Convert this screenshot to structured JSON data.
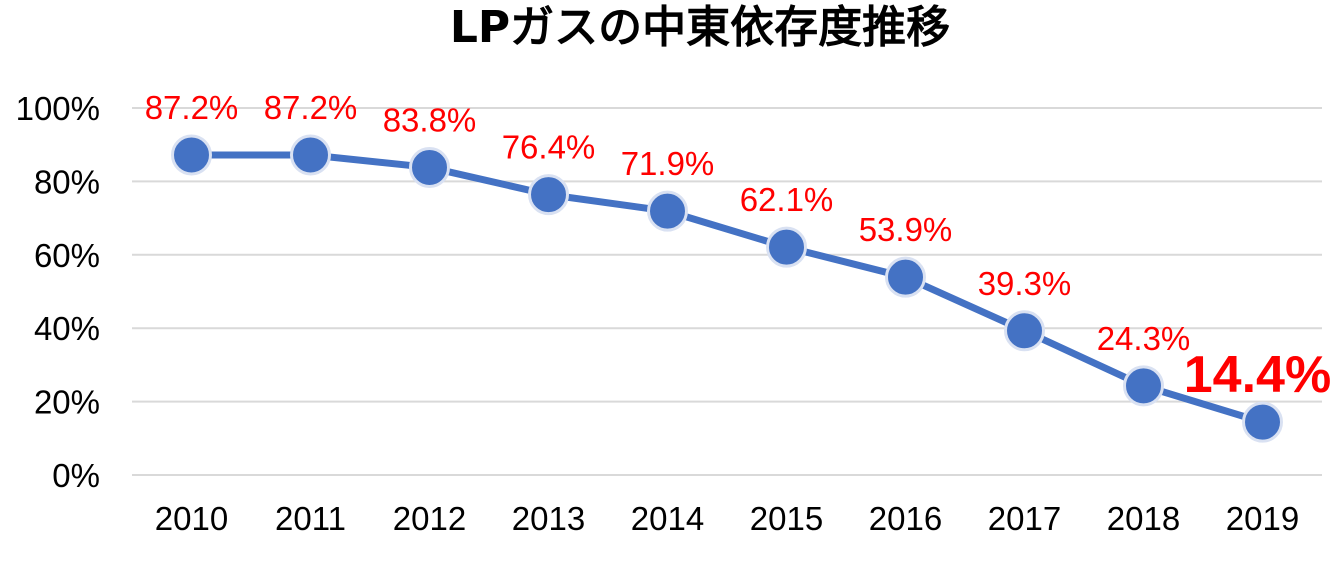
{
  "chart_data": {
    "type": "line",
    "title": "LPガスの中東依存度推移",
    "xlabel": "",
    "ylabel": "",
    "categories": [
      "2010",
      "2011",
      "2012",
      "2013",
      "2014",
      "2015",
      "2016",
      "2017",
      "2018",
      "2019"
    ],
    "series": [
      {
        "values": [
          87.2,
          87.2,
          83.8,
          76.4,
          71.9,
          62.1,
          53.9,
          39.3,
          24.3,
          14.4
        ],
        "data_labels": [
          "87.2%",
          "87.2%",
          "83.8%",
          "76.4%",
          "71.9%",
          "62.1%",
          "53.9%",
          "39.3%",
          "24.3%",
          "14.4%"
        ],
        "highlighted_label_index": 9
      }
    ],
    "ylim": [
      0,
      100
    ],
    "yticks": [
      "0%",
      "20%",
      "40%",
      "60%",
      "80%",
      "100%"
    ],
    "ytick_values": [
      0,
      20,
      40,
      60,
      80,
      100
    ],
    "grid": true,
    "legend": "none",
    "colors": {
      "line": "#4472c4",
      "marker_fill": "#4472c4",
      "marker_edge": "#d9e1f2",
      "label": "#ff0000",
      "grid": "#d9d9d9"
    }
  }
}
